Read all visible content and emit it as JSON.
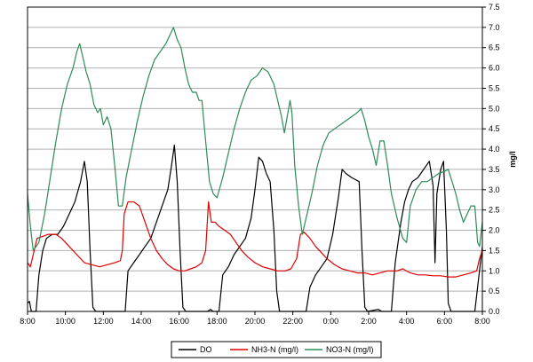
{
  "chart_data": {
    "type": "line",
    "title": "",
    "xlabel": "",
    "ylabel": "mg/l",
    "ylim": [
      0,
      7.5
    ],
    "y_ticks": [
      "0.0",
      "0.5",
      "1.0",
      "1.5",
      "2.0",
      "2.5",
      "3.0",
      "3.5",
      "4.0",
      "4.5",
      "5.0",
      "5.5",
      "6.0",
      "6.5",
      "7.0",
      "7.5"
    ],
    "x_range_hours": [
      8,
      32
    ],
    "x_ticks": [
      {
        "h": 8,
        "label": "8:00"
      },
      {
        "h": 10,
        "label": "10:00"
      },
      {
        "h": 12,
        "label": "12:00"
      },
      {
        "h": 14,
        "label": "14:00"
      },
      {
        "h": 16,
        "label": "16:00"
      },
      {
        "h": 18,
        "label": "18:00"
      },
      {
        "h": 20,
        "label": "20:00"
      },
      {
        "h": 22,
        "label": "22:00"
      },
      {
        "h": 24,
        "label": "0:00"
      },
      {
        "h": 26,
        "label": "2:00"
      },
      {
        "h": 28,
        "label": "4:00"
      },
      {
        "h": 30,
        "label": "6:00"
      },
      {
        "h": 32,
        "label": "8:00"
      }
    ],
    "grid": true,
    "legend_position": "bottom",
    "series": [
      {
        "name": "DO",
        "color": "#000000",
        "points": [
          [
            8.0,
            0.2
          ],
          [
            8.1,
            0.25
          ],
          [
            8.2,
            0.0
          ],
          [
            8.45,
            0.0
          ],
          [
            8.6,
            0.9
          ],
          [
            8.8,
            1.5
          ],
          [
            9.0,
            1.8
          ],
          [
            9.3,
            1.9
          ],
          [
            9.6,
            1.9
          ],
          [
            9.9,
            2.1
          ],
          [
            10.2,
            2.4
          ],
          [
            10.5,
            2.7
          ],
          [
            10.8,
            3.2
          ],
          [
            11.0,
            3.7
          ],
          [
            11.15,
            3.2
          ],
          [
            11.3,
            1.5
          ],
          [
            11.45,
            0.1
          ],
          [
            11.6,
            0.0
          ],
          [
            13.15,
            0.0
          ],
          [
            13.3,
            1.0
          ],
          [
            13.6,
            1.2
          ],
          [
            13.9,
            1.4
          ],
          [
            14.2,
            1.6
          ],
          [
            14.5,
            1.8
          ],
          [
            14.8,
            2.2
          ],
          [
            15.1,
            2.6
          ],
          [
            15.4,
            3.0
          ],
          [
            15.6,
            3.6
          ],
          [
            15.75,
            4.1
          ],
          [
            15.9,
            3.2
          ],
          [
            16.05,
            1.5
          ],
          [
            16.2,
            0.1
          ],
          [
            16.35,
            0.0
          ],
          [
            17.5,
            0.0
          ],
          [
            17.65,
            0.05
          ],
          [
            17.8,
            0.0
          ],
          [
            18.1,
            0.0
          ],
          [
            18.3,
            0.9
          ],
          [
            18.6,
            1.1
          ],
          [
            18.9,
            1.4
          ],
          [
            19.2,
            1.6
          ],
          [
            19.5,
            1.8
          ],
          [
            19.8,
            2.3
          ],
          [
            20.0,
            3.0
          ],
          [
            20.2,
            3.8
          ],
          [
            20.4,
            3.7
          ],
          [
            20.6,
            3.4
          ],
          [
            20.8,
            3.2
          ],
          [
            21.0,
            2.0
          ],
          [
            21.15,
            0.5
          ],
          [
            21.3,
            0.0
          ],
          [
            22.7,
            0.0
          ],
          [
            22.9,
            0.6
          ],
          [
            23.2,
            0.9
          ],
          [
            23.5,
            1.1
          ],
          [
            23.8,
            1.3
          ],
          [
            24.1,
            1.9
          ],
          [
            24.4,
            2.8
          ],
          [
            24.6,
            3.5
          ],
          [
            24.8,
            3.4
          ],
          [
            25.1,
            3.3
          ],
          [
            25.5,
            3.2
          ],
          [
            25.65,
            1.5
          ],
          [
            25.8,
            0.1
          ],
          [
            25.95,
            0.0
          ],
          [
            26.5,
            0.05
          ],
          [
            26.7,
            0.0
          ],
          [
            27.2,
            0.0
          ],
          [
            27.4,
            1.2
          ],
          [
            27.7,
            2.2
          ],
          [
            27.9,
            2.7
          ],
          [
            28.1,
            3.0
          ],
          [
            28.3,
            3.2
          ],
          [
            28.6,
            3.3
          ],
          [
            28.9,
            3.5
          ],
          [
            29.2,
            3.7
          ],
          [
            29.4,
            3.1
          ],
          [
            29.5,
            1.2
          ],
          [
            29.6,
            2.9
          ],
          [
            29.8,
            3.5
          ],
          [
            29.95,
            3.7
          ],
          [
            30.1,
            2.0
          ],
          [
            30.2,
            0.2
          ],
          [
            30.35,
            0.0
          ],
          [
            31.6,
            0.0
          ],
          [
            31.8,
            0.8
          ],
          [
            32.0,
            1.6
          ]
        ]
      },
      {
        "name": "NH3-N (mg/l)",
        "color": "#e00000",
        "points": [
          [
            8.0,
            1.2
          ],
          [
            8.15,
            1.1
          ],
          [
            8.3,
            1.4
          ],
          [
            8.5,
            1.8
          ],
          [
            8.8,
            1.85
          ],
          [
            9.1,
            1.9
          ],
          [
            9.5,
            1.9
          ],
          [
            9.8,
            1.8
          ],
          [
            10.2,
            1.6
          ],
          [
            10.6,
            1.4
          ],
          [
            11.0,
            1.2
          ],
          [
            11.4,
            1.15
          ],
          [
            11.8,
            1.1
          ],
          [
            12.2,
            1.15
          ],
          [
            12.6,
            1.2
          ],
          [
            12.9,
            1.25
          ],
          [
            13.0,
            1.5
          ],
          [
            13.1,
            2.4
          ],
          [
            13.3,
            2.7
          ],
          [
            13.6,
            2.7
          ],
          [
            13.9,
            2.6
          ],
          [
            14.2,
            2.2
          ],
          [
            14.5,
            1.8
          ],
          [
            14.8,
            1.5
          ],
          [
            15.1,
            1.3
          ],
          [
            15.4,
            1.15
          ],
          [
            15.7,
            1.05
          ],
          [
            16.0,
            1.0
          ],
          [
            16.3,
            1.0
          ],
          [
            16.6,
            1.05
          ],
          [
            16.9,
            1.1
          ],
          [
            17.2,
            1.2
          ],
          [
            17.4,
            1.5
          ],
          [
            17.55,
            2.7
          ],
          [
            17.7,
            2.2
          ],
          [
            17.9,
            2.2
          ],
          [
            18.1,
            2.1
          ],
          [
            18.4,
            2.0
          ],
          [
            18.7,
            1.9
          ],
          [
            19.0,
            1.7
          ],
          [
            19.3,
            1.5
          ],
          [
            19.6,
            1.35
          ],
          [
            20.0,
            1.2
          ],
          [
            20.4,
            1.1
          ],
          [
            20.8,
            1.05
          ],
          [
            21.2,
            1.0
          ],
          [
            21.6,
            1.0
          ],
          [
            21.9,
            1.05
          ],
          [
            22.2,
            1.3
          ],
          [
            22.4,
            1.9
          ],
          [
            22.6,
            1.95
          ],
          [
            22.9,
            1.8
          ],
          [
            23.2,
            1.6
          ],
          [
            23.5,
            1.45
          ],
          [
            23.8,
            1.3
          ],
          [
            24.2,
            1.15
          ],
          [
            24.6,
            1.05
          ],
          [
            25.0,
            1.0
          ],
          [
            25.4,
            0.95
          ],
          [
            25.8,
            0.95
          ],
          [
            26.2,
            0.9
          ],
          [
            26.6,
            0.95
          ],
          [
            27.0,
            1.0
          ],
          [
            27.3,
            1.0
          ],
          [
            27.5,
            1.0
          ],
          [
            27.8,
            1.05
          ],
          [
            28.2,
            0.95
          ],
          [
            28.6,
            0.9
          ],
          [
            29.0,
            0.9
          ],
          [
            29.4,
            0.88
          ],
          [
            29.8,
            0.88
          ],
          [
            30.2,
            0.85
          ],
          [
            30.6,
            0.85
          ],
          [
            31.0,
            0.9
          ],
          [
            31.4,
            0.95
          ],
          [
            31.7,
            1.0
          ],
          [
            31.85,
            1.3
          ],
          [
            32.0,
            1.5
          ]
        ]
      },
      {
        "name": "NO3-N (mg/l)",
        "color": "#2e8b57",
        "points": [
          [
            8.0,
            2.9
          ],
          [
            8.15,
            2.1
          ],
          [
            8.3,
            1.5
          ],
          [
            8.6,
            1.7
          ],
          [
            8.9,
            2.4
          ],
          [
            9.2,
            3.3
          ],
          [
            9.5,
            4.2
          ],
          [
            9.8,
            5.0
          ],
          [
            10.1,
            5.6
          ],
          [
            10.4,
            6.0
          ],
          [
            10.6,
            6.4
          ],
          [
            10.75,
            6.6
          ],
          [
            10.9,
            6.3
          ],
          [
            11.1,
            5.9
          ],
          [
            11.3,
            5.6
          ],
          [
            11.5,
            5.1
          ],
          [
            11.7,
            4.9
          ],
          [
            11.85,
            5.0
          ],
          [
            12.0,
            4.6
          ],
          [
            12.2,
            4.8
          ],
          [
            12.4,
            4.5
          ],
          [
            12.6,
            3.6
          ],
          [
            12.8,
            2.6
          ],
          [
            13.0,
            2.6
          ],
          [
            13.2,
            3.3
          ],
          [
            13.5,
            4.0
          ],
          [
            13.8,
            4.7
          ],
          [
            14.1,
            5.3
          ],
          [
            14.4,
            5.8
          ],
          [
            14.7,
            6.2
          ],
          [
            15.0,
            6.4
          ],
          [
            15.3,
            6.6
          ],
          [
            15.5,
            6.8
          ],
          [
            15.7,
            7.0
          ],
          [
            15.9,
            6.7
          ],
          [
            16.1,
            6.5
          ],
          [
            16.3,
            6.0
          ],
          [
            16.5,
            5.6
          ],
          [
            16.7,
            5.4
          ],
          [
            16.9,
            5.4
          ],
          [
            17.05,
            5.2
          ],
          [
            17.2,
            5.2
          ],
          [
            17.4,
            4.2
          ],
          [
            17.6,
            3.2
          ],
          [
            17.8,
            2.9
          ],
          [
            18.0,
            2.8
          ],
          [
            18.3,
            3.3
          ],
          [
            18.6,
            3.9
          ],
          [
            18.9,
            4.5
          ],
          [
            19.2,
            5.0
          ],
          [
            19.5,
            5.4
          ],
          [
            19.8,
            5.7
          ],
          [
            20.1,
            5.8
          ],
          [
            20.4,
            6.0
          ],
          [
            20.7,
            5.9
          ],
          [
            21.0,
            5.6
          ],
          [
            21.2,
            5.2
          ],
          [
            21.4,
            4.8
          ],
          [
            21.55,
            4.4
          ],
          [
            21.7,
            4.8
          ],
          [
            21.85,
            5.2
          ],
          [
            21.95,
            4.9
          ],
          [
            22.1,
            3.6
          ],
          [
            22.3,
            2.6
          ],
          [
            22.5,
            1.9
          ],
          [
            22.7,
            2.3
          ],
          [
            23.0,
            2.9
          ],
          [
            23.3,
            3.6
          ],
          [
            23.6,
            4.1
          ],
          [
            23.9,
            4.4
          ],
          [
            24.2,
            4.5
          ],
          [
            24.5,
            4.6
          ],
          [
            24.8,
            4.7
          ],
          [
            25.1,
            4.8
          ],
          [
            25.4,
            4.9
          ],
          [
            25.6,
            5.0
          ],
          [
            25.8,
            4.7
          ],
          [
            26.0,
            4.3
          ],
          [
            26.2,
            4.0
          ],
          [
            26.4,
            3.6
          ],
          [
            26.6,
            4.2
          ],
          [
            26.8,
            4.2
          ],
          [
            27.0,
            3.6
          ],
          [
            27.2,
            2.9
          ],
          [
            27.5,
            2.3
          ],
          [
            27.8,
            1.8
          ],
          [
            28.0,
            1.7
          ],
          [
            28.2,
            2.6
          ],
          [
            28.5,
            3.0
          ],
          [
            28.8,
            3.2
          ],
          [
            29.1,
            3.2
          ],
          [
            29.4,
            3.3
          ],
          [
            29.7,
            3.4
          ],
          [
            30.0,
            3.45
          ],
          [
            30.2,
            3.5
          ],
          [
            30.4,
            3.2
          ],
          [
            30.6,
            2.9
          ],
          [
            30.8,
            2.5
          ],
          [
            31.0,
            2.2
          ],
          [
            31.2,
            2.4
          ],
          [
            31.4,
            2.6
          ],
          [
            31.6,
            2.6
          ],
          [
            31.75,
            1.7
          ],
          [
            31.85,
            1.6
          ],
          [
            32.0,
            2.2
          ]
        ]
      }
    ]
  },
  "colors": {
    "grid": "#b0b0b0",
    "plot_border": "#000000",
    "legend_border": "#000000"
  }
}
